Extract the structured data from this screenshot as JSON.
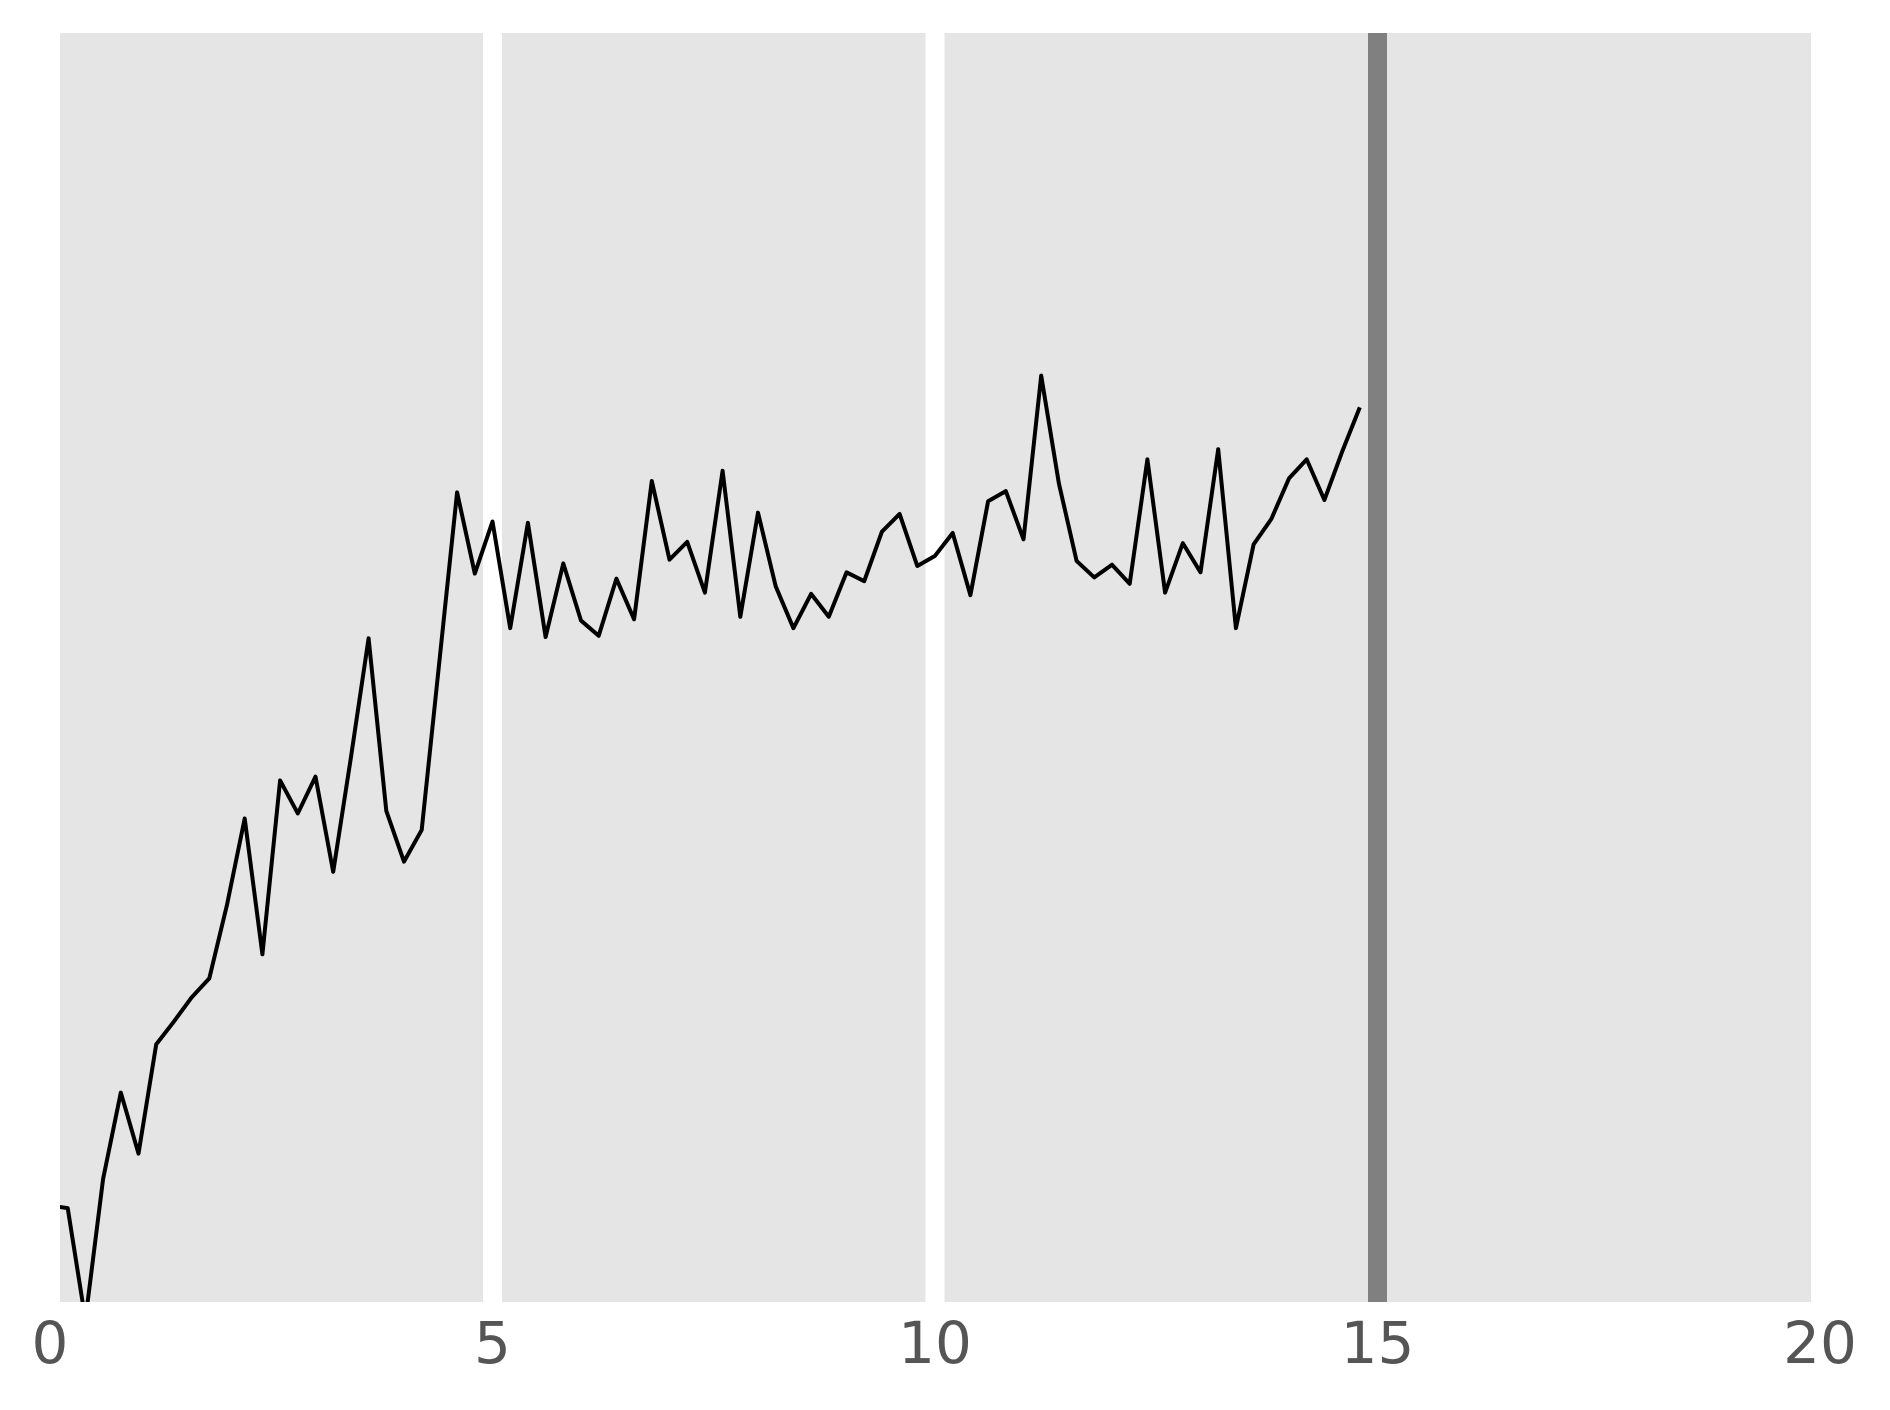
{
  "chart_data": {
    "type": "line",
    "x": [
      0,
      0.2,
      0.4,
      0.6,
      0.8,
      1.0,
      1.2,
      1.4,
      1.6,
      1.8,
      2.0,
      2.2,
      2.4,
      2.6,
      2.8,
      3.0,
      3.2,
      3.4,
      3.6,
      3.8,
      4.0,
      4.2,
      4.4,
      4.6,
      4.8,
      5.0,
      5.2,
      5.4,
      5.6,
      5.8,
      6.0,
      6.2,
      6.4,
      6.6,
      6.8,
      7.0,
      7.2,
      7.4,
      7.6,
      7.8,
      8.0,
      8.2,
      8.4,
      8.6,
      8.8,
      9.0,
      9.2,
      9.4,
      9.6,
      9.8,
      10.0,
      10.2,
      10.4,
      10.6,
      10.8,
      11.0,
      11.2,
      11.4,
      11.6,
      11.8,
      12.0,
      12.2,
      12.4,
      12.6,
      12.8,
      13.0,
      13.2,
      13.4,
      13.6,
      13.8,
      14.0,
      14.2,
      14.4,
      14.6,
      14.8
    ],
    "series": [
      {
        "color": "#000000",
        "values": [
          7.6,
          7.4,
          -1.4,
          9.7,
          16.5,
          11.7,
          20.3,
          22.1,
          24.0,
          25.5,
          31.3,
          38.1,
          27.4,
          41.1,
          38.5,
          41.4,
          33.9,
          42.9,
          52.3,
          38.7,
          34.7,
          37.2,
          50.5,
          63.8,
          57.4,
          61.5,
          53.1,
          61.4,
          52.4,
          58.2,
          53.7,
          52.5,
          57.0,
          53.8,
          64.7,
          58.5,
          59.9,
          55.9,
          65.5,
          54.0,
          62.2,
          56.4,
          53.1,
          55.8,
          54.0,
          57.5,
          56.8,
          60.7,
          62.1,
          58.0,
          58.8,
          60.6,
          55.7,
          63.1,
          63.9,
          60.1,
          73.0,
          64.5,
          58.4,
          57.1,
          58.1,
          56.6,
          66.4,
          55.9,
          59.8,
          57.5,
          67.2,
          53.1,
          59.7,
          61.7,
          64.9,
          66.4,
          63.2,
          67.0,
          70.5
        ]
      }
    ],
    "xlim": [
      0,
      20
    ],
    "xticks": [
      0,
      5,
      10,
      15,
      20
    ],
    "ylim": [
      0,
      100
    ],
    "grid": true,
    "grid_color": "#ffffff",
    "background": "#e5e5e5",
    "vline": {
      "x": 15,
      "color": "#808080"
    }
  }
}
